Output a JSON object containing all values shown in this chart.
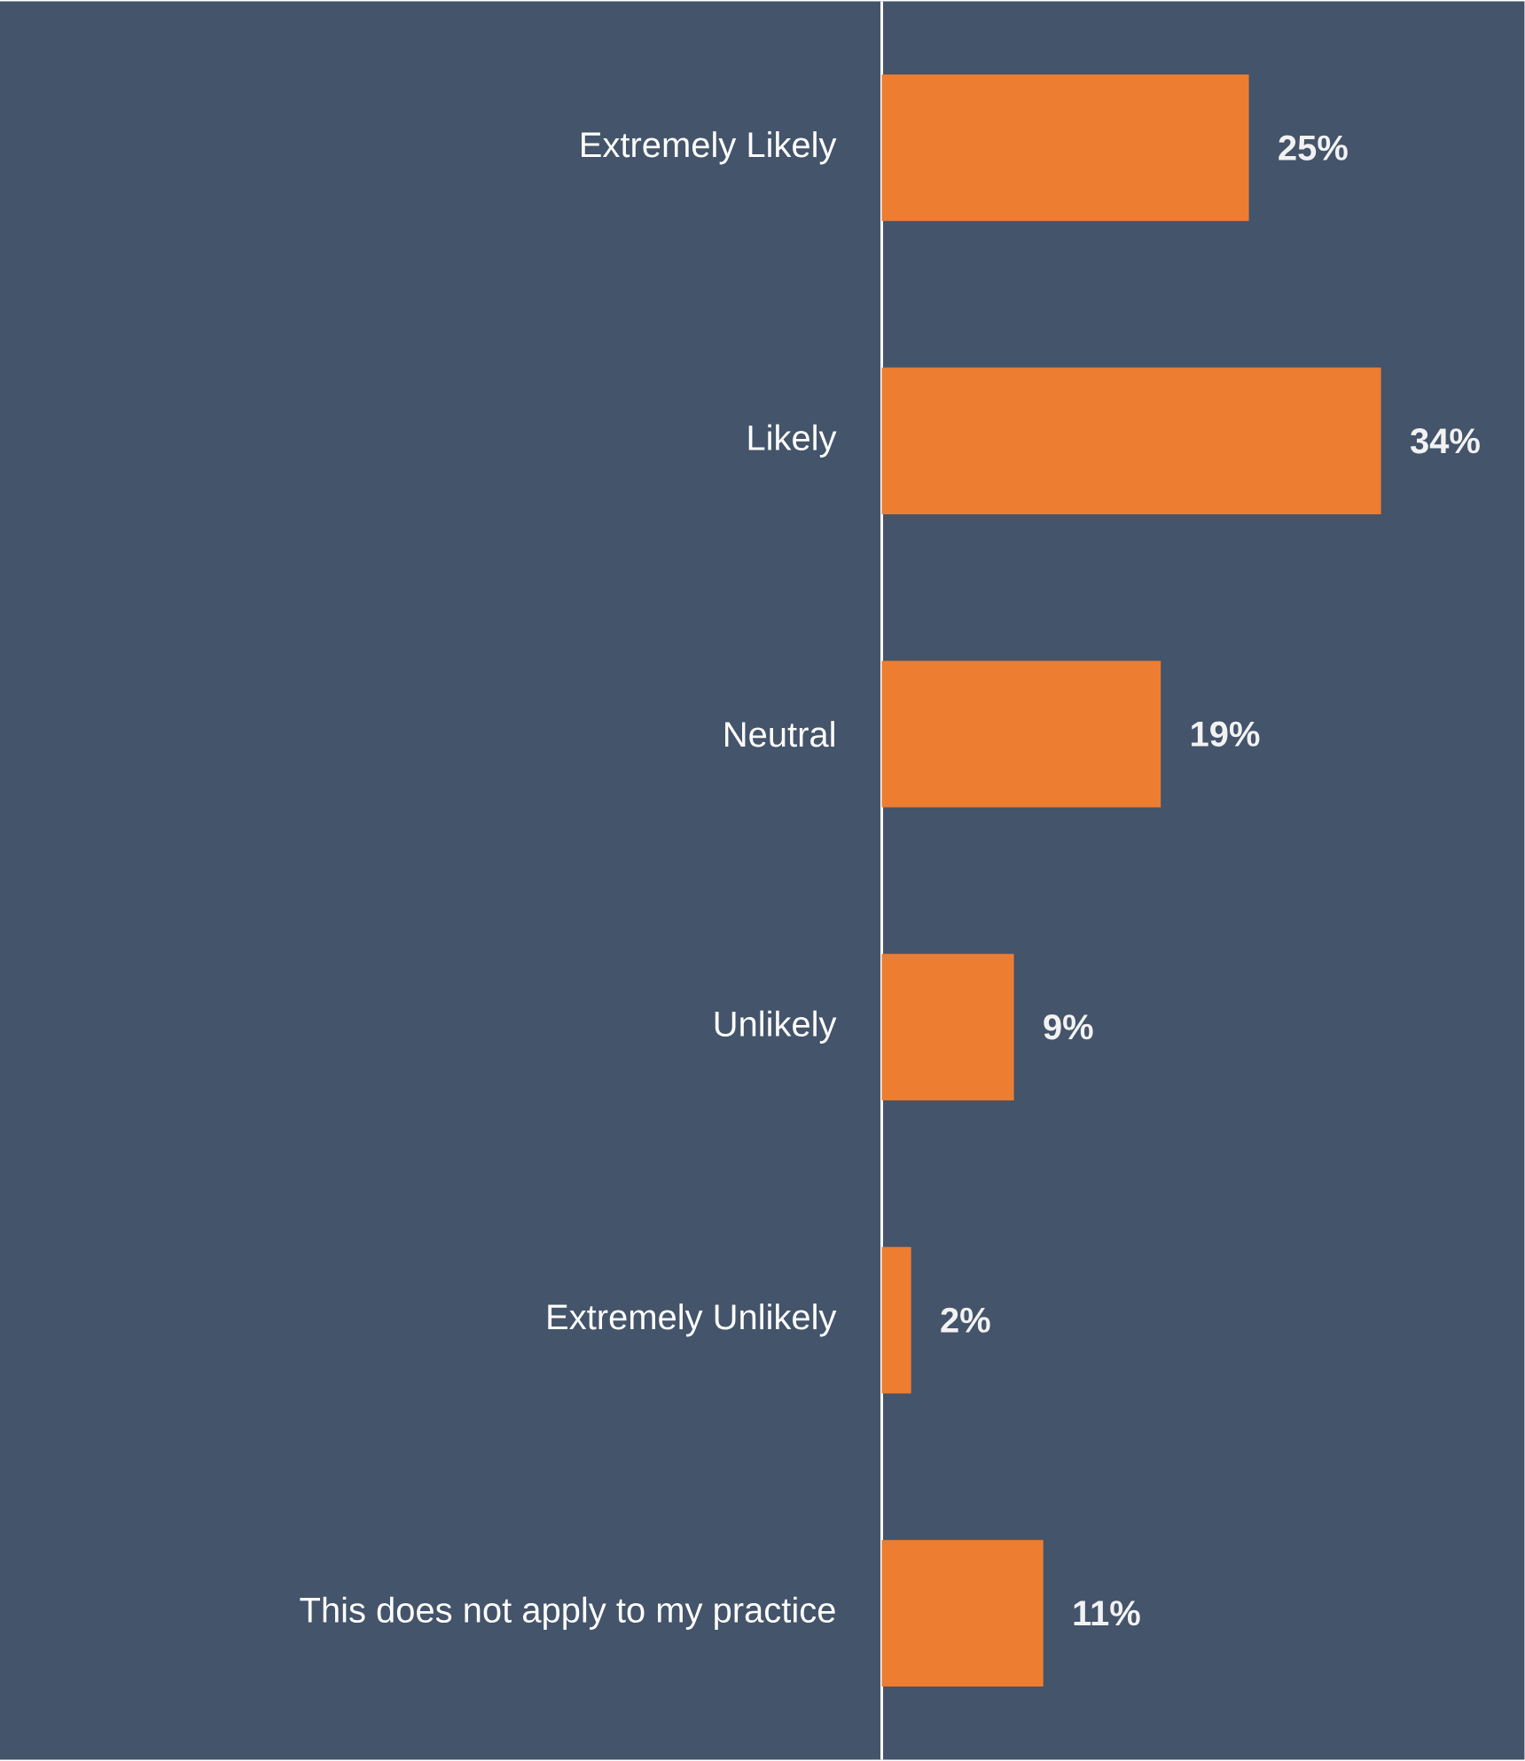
{
  "chart_data": {
    "type": "bar",
    "orientation": "horizontal",
    "categories": [
      "Extremely Likely",
      "Likely",
      "Neutral",
      "Unlikely",
      "Extremely Unlikely",
      "This does not apply to my practice"
    ],
    "values": [
      25,
      34,
      19,
      9,
      2,
      11
    ],
    "value_labels": [
      "25%",
      "34%",
      "19%",
      "9%",
      "2%",
      "11%"
    ],
    "color": "#ed7d31"
  }
}
